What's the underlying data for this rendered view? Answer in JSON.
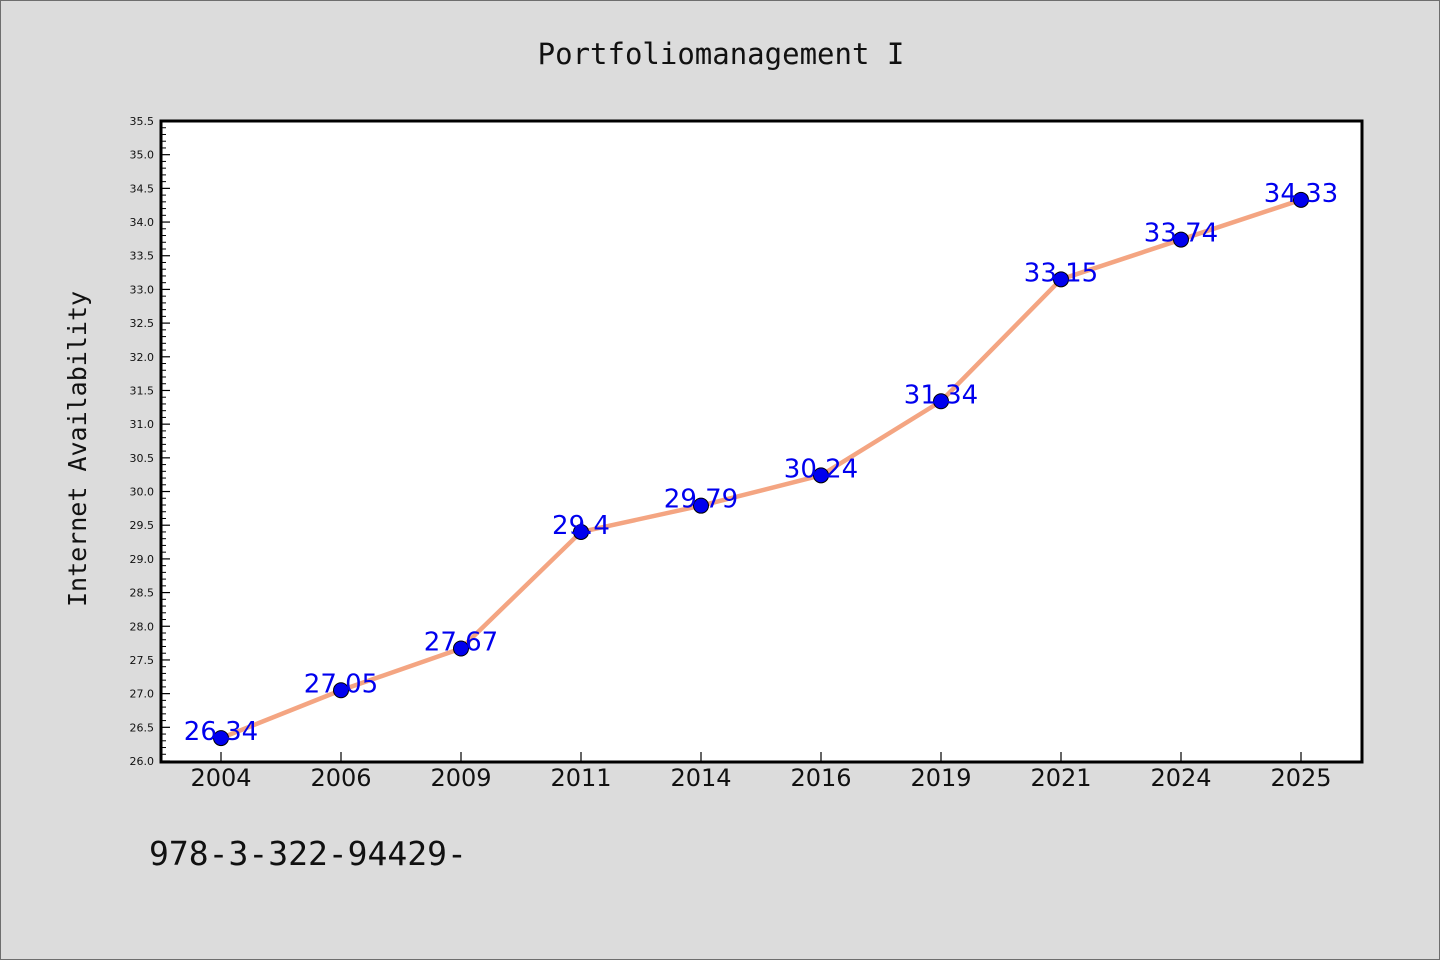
{
  "chart_data": {
    "type": "line",
    "title": "Portfoliomanagement I",
    "xlabel": "",
    "ylabel": "Internet Availability",
    "categories": [
      "2004",
      "2006",
      "2009",
      "2011",
      "2014",
      "2016",
      "2019",
      "2021",
      "2024",
      "2025"
    ],
    "series": [
      {
        "values": [
          26.34,
          27.05,
          27.67,
          29.4,
          29.79,
          30.24,
          31.34,
          33.15,
          33.74,
          34.33
        ],
        "data_labels": [
          "26.34",
          "27.05",
          "27.67",
          "29.4",
          "29.79",
          "30.24",
          "31.34",
          "33.15",
          "33.74",
          "34.33"
        ],
        "line_color": "#f4a582",
        "marker_color": "#0000ee",
        "label_color": "#0000ee"
      }
    ],
    "ylim": [
      26.0,
      35.5
    ],
    "yticks": [
      "26.0",
      "26.5",
      "27.0",
      "27.5",
      "28.0",
      "28.5",
      "29.0",
      "29.5",
      "30.0",
      "30.5",
      "31.0",
      "31.5",
      "32.0",
      "32.5",
      "33.0",
      "33.5",
      "34.0",
      "34.5",
      "35.0",
      "35.5"
    ],
    "grid": false,
    "legend": "none",
    "background_color": "#dcdcdc",
    "plot_background_color": "#ffffff"
  },
  "footer": {
    "isbn": "978-3-322-94429-"
  }
}
